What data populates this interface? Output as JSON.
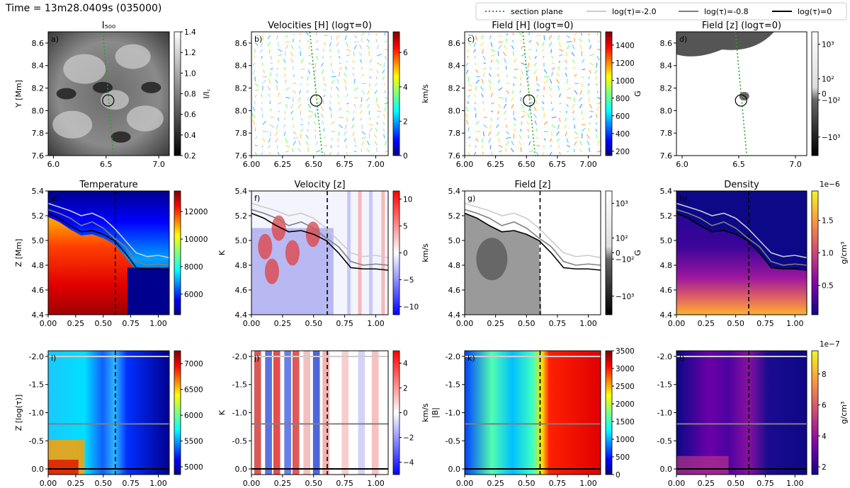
{
  "figure": {
    "time_label": "Time = 13m28.0409s (035000)"
  },
  "legend": {
    "entries": [
      {
        "label": "section plane",
        "color": "#2ca02c",
        "style": "dotted"
      },
      {
        "label": "log(τ)=-2.0",
        "color": "#cccccc",
        "style": "solid"
      },
      {
        "label": "log(τ)=-0.8",
        "color": "#808080",
        "style": "solid"
      },
      {
        "label": "log(τ)=0",
        "color": "#000000",
        "style": "solid"
      }
    ]
  },
  "chart_data": [
    {
      "id": "a",
      "type": "heatmap",
      "title": "I₅₀₀",
      "panel_label": "a)",
      "ylabel": "Y [Mm]",
      "xlim": [
        5.95,
        7.1
      ],
      "ylim": [
        7.6,
        8.7
      ],
      "xticks": [
        "6.0",
        "6.5",
        "7.0"
      ],
      "yticks": [
        "7.6",
        "7.8",
        "8.0",
        "8.2",
        "8.4",
        "8.6"
      ],
      "colorbar": {
        "label": "I/I꜀",
        "range": [
          0.2,
          1.4
        ],
        "ticks": [
          "0.2",
          "0.4",
          "0.6",
          "0.8",
          "1.0",
          "1.2",
          "1.4"
        ],
        "cmap": "gray"
      },
      "marker": {
        "x": 6.52,
        "y": 8.09
      },
      "section_line": [
        [
          6.47,
          8.7
        ],
        [
          6.57,
          7.6
        ]
      ]
    },
    {
      "id": "b",
      "type": "quiver",
      "title": "Velocities [H] (logτ=0)",
      "panel_label": "b)",
      "xlim": [
        6.0,
        7.1
      ],
      "ylim": [
        7.6,
        8.7
      ],
      "xticks": [
        "6.00",
        "6.25",
        "6.50",
        "6.75",
        "7.00"
      ],
      "yticks": [
        "7.6",
        "7.8",
        "8.0",
        "8.2",
        "8.4",
        "8.6"
      ],
      "colorbar": {
        "label": "km/s",
        "range": [
          0,
          7.2
        ],
        "ticks": [
          "0",
          "2",
          "4",
          "6"
        ],
        "cmap": "jet"
      },
      "marker": {
        "x": 6.52,
        "y": 8.09
      },
      "section_line": [
        [
          6.47,
          8.7
        ],
        [
          6.57,
          7.6
        ]
      ]
    },
    {
      "id": "c",
      "type": "quiver",
      "title": "Field [H] (logτ=0)",
      "panel_label": "c)",
      "xlim": [
        6.0,
        7.1
      ],
      "ylim": [
        7.6,
        8.7
      ],
      "xticks": [
        "6.00",
        "6.25",
        "6.50",
        "6.75",
        "7.00"
      ],
      "yticks": [
        "7.6",
        "7.8",
        "8.0",
        "8.2",
        "8.4",
        "8.6"
      ],
      "colorbar": {
        "label": "G",
        "range": [
          150,
          1550
        ],
        "ticks": [
          "200",
          "400",
          "600",
          "800",
          "1000",
          "1200",
          "1400"
        ],
        "cmap": "jet"
      },
      "marker": {
        "x": 6.52,
        "y": 8.09
      },
      "section_line": [
        [
          6.47,
          8.7
        ],
        [
          6.57,
          7.6
        ]
      ]
    },
    {
      "id": "d",
      "type": "heatmap",
      "title": "Field [z] (logτ=0)",
      "panel_label": "d)",
      "xlim": [
        5.95,
        7.1
      ],
      "ylim": [
        7.6,
        8.7
      ],
      "xticks": [
        "6.0",
        "6.5",
        "7.0"
      ],
      "yticks": [
        "7.6",
        "7.8",
        "8.0",
        "8.2",
        "8.4",
        "8.6"
      ],
      "colorbar": {
        "label": "",
        "scale": "symlog",
        "ticks": [
          "10³",
          "10²",
          "0",
          "−10²",
          "−10³"
        ],
        "cmap": "gray"
      },
      "marker": {
        "x": 6.52,
        "y": 8.09
      },
      "section_line": [
        [
          6.47,
          8.7
        ],
        [
          6.57,
          7.6
        ]
      ]
    },
    {
      "id": "e",
      "type": "heatmap",
      "title": "Temperature",
      "panel_label": "e)",
      "ylabel": "Z [Mm]",
      "xlim": [
        0,
        1.1
      ],
      "ylim": [
        4.4,
        5.4
      ],
      "xticks": [
        "0.00",
        "0.25",
        "0.50",
        "0.75",
        "1.00"
      ],
      "yticks": [
        "4.4",
        "4.6",
        "4.8",
        "5.0",
        "5.2",
        "5.4"
      ],
      "colorbar": {
        "label": "",
        "range": [
          4500,
          13500
        ],
        "ticks": [
          "6000",
          "8000",
          "10000",
          "12000"
        ],
        "cmap": "jet"
      },
      "section_x": 0.61,
      "tau_curves": [
        {
          "name": "log(τ)=-2.0",
          "x": [
            0,
            0.1,
            0.2,
            0.3,
            0.4,
            0.5,
            0.6,
            0.7,
            0.8,
            0.9,
            1.0,
            1.1
          ],
          "y": [
            5.3,
            5.27,
            5.24,
            5.2,
            5.22,
            5.18,
            5.1,
            5.0,
            4.9,
            4.87,
            4.88,
            4.86
          ]
        },
        {
          "name": "log(τ)=-0.8",
          "x": [
            0,
            0.1,
            0.2,
            0.3,
            0.4,
            0.5,
            0.6,
            0.7,
            0.8,
            0.9,
            1.0,
            1.1
          ],
          "y": [
            5.25,
            5.22,
            5.18,
            5.12,
            5.15,
            5.1,
            5.02,
            4.95,
            4.83,
            4.8,
            4.81,
            4.8
          ]
        },
        {
          "name": "log(τ)=0",
          "x": [
            0,
            0.1,
            0.2,
            0.3,
            0.4,
            0.5,
            0.6,
            0.7,
            0.8,
            0.9,
            1.0,
            1.1
          ],
          "y": [
            5.22,
            5.18,
            5.12,
            5.07,
            5.08,
            5.05,
            5.0,
            4.9,
            4.78,
            4.77,
            4.77,
            4.76
          ]
        }
      ]
    },
    {
      "id": "f",
      "type": "heatmap",
      "title": "Velocity [z]",
      "panel_label": "f)",
      "ylabel": "K",
      "xlim": [
        0,
        1.1
      ],
      "ylim": [
        4.4,
        5.4
      ],
      "xticks": [
        "0.00",
        "0.25",
        "0.50",
        "0.75",
        "1.00"
      ],
      "yticks": [
        "4.4",
        "4.6",
        "4.8",
        "5.0",
        "5.2",
        "5.4"
      ],
      "colorbar": {
        "label": "km/s",
        "range": [
          -11.5,
          11.5
        ],
        "ticks": [
          "10",
          "5",
          "0",
          "−5",
          "−10"
        ],
        "cmap": "bwr"
      },
      "section_x": 0.61,
      "uses_tau_curves": "e"
    },
    {
      "id": "g",
      "type": "heatmap",
      "title": "Field [z]",
      "panel_label": "g)",
      "xlim": [
        0,
        1.1
      ],
      "ylim": [
        4.4,
        5.4
      ],
      "xticks": [
        "0.00",
        "0.25",
        "0.50",
        "0.75",
        "1.00"
      ],
      "yticks": [
        "4.4",
        "4.6",
        "4.8",
        "5.0",
        "5.2",
        "5.4"
      ],
      "colorbar": {
        "label": "G",
        "scale": "symlog",
        "ticks": [
          "10³",
          "10²",
          "0",
          "−10²",
          "−10³"
        ],
        "cmap": "gray"
      },
      "section_x": 0.61,
      "uses_tau_curves": "e"
    },
    {
      "id": "h",
      "type": "heatmap",
      "title": "Density",
      "panel_label": "h)",
      "xlim": [
        0,
        1.1
      ],
      "ylim": [
        4.4,
        5.4
      ],
      "xticks": [
        "0.00",
        "0.25",
        "0.50",
        "0.75",
        "1.00"
      ],
      "yticks": [
        "4.4",
        "4.6",
        "4.8",
        "5.0",
        "5.2",
        "5.4"
      ],
      "colorbar": {
        "label": "g/cm³",
        "offset": "1e−6",
        "range": [
          0.05,
          1.95
        ],
        "ticks": [
          "0.5",
          "1.0",
          "1.5"
        ],
        "cmap": "plasma"
      },
      "section_x": 0.61,
      "uses_tau_curves": "e"
    },
    {
      "id": "i",
      "type": "heatmap",
      "title": "",
      "panel_label": "i)",
      "ylabel": "Z [log(τ)]",
      "xlim": [
        0,
        1.1
      ],
      "ylim": [
        0.1,
        -2.1
      ],
      "xticks": [
        "0.00",
        "0.25",
        "0.50",
        "0.75",
        "1.00"
      ],
      "yticks": [
        "-2.0",
        "-1.5",
        "-1.0",
        "-0.5",
        "0.0"
      ],
      "colorbar": {
        "label": "",
        "range": [
          4850,
          7250
        ],
        "ticks": [
          "5000",
          "5500",
          "6000",
          "6500",
          "7000"
        ],
        "cmap": "jet"
      },
      "section_x": 0.61,
      "tau_levels": [
        -2.0,
        -0.8,
        0.0
      ]
    },
    {
      "id": "j",
      "type": "heatmap",
      "title": "",
      "panel_label": "j)",
      "ylabel": "K",
      "xlim": [
        0,
        1.1
      ],
      "ylim": [
        0.1,
        -2.1
      ],
      "xticks": [
        "0.00",
        "0.25",
        "0.50",
        "0.75",
        "1.00"
      ],
      "yticks": [
        "-2.0",
        "-1.5",
        "-1.0",
        "-0.5",
        "0.0"
      ],
      "colorbar": {
        "label": "km/s",
        "range": [
          -5,
          5
        ],
        "ticks": [
          "4",
          "2",
          "0",
          "−2",
          "−4"
        ],
        "cmap": "bwr"
      },
      "section_x": 0.61,
      "tau_levels": [
        -2.0,
        -0.8,
        0.0
      ]
    },
    {
      "id": "k",
      "type": "heatmap",
      "title": "",
      "panel_label": "k)",
      "ylabel": "|B|",
      "xlim": [
        0,
        1.1
      ],
      "ylim": [
        0.1,
        -2.1
      ],
      "xticks": [
        "0.00",
        "0.25",
        "0.50",
        "0.75",
        "1.00"
      ],
      "yticks": [
        "-2.0",
        "-1.5",
        "-1.0",
        "-0.5",
        "0.0"
      ],
      "colorbar": {
        "label": "",
        "range": [
          0,
          3500
        ],
        "ticks": [
          "0",
          "500",
          "1000",
          "1500",
          "2000",
          "2500",
          "3000",
          "3500"
        ],
        "cmap": "jet"
      },
      "section_x": 0.61,
      "tau_levels": [
        -2.0,
        -0.8,
        0.0
      ]
    },
    {
      "id": "l",
      "type": "heatmap",
      "title": "",
      "panel_label": "l)",
      "xlim": [
        0,
        1.1
      ],
      "ylim": [
        0.1,
        -2.1
      ],
      "xticks": [
        "0.00",
        "0.25",
        "0.50",
        "0.75",
        "1.00"
      ],
      "yticks": [
        "-2.0",
        "-1.5",
        "-1.0",
        "-0.5",
        "0.0"
      ],
      "colorbar": {
        "label": "g/cm³",
        "offset": "1e−7",
        "range": [
          1.5,
          9.5
        ],
        "ticks": [
          "2",
          "4",
          "6",
          "8"
        ],
        "cmap": "plasma"
      },
      "section_x": 0.61,
      "tau_levels": [
        -2.0,
        -0.8,
        0.0
      ]
    }
  ]
}
